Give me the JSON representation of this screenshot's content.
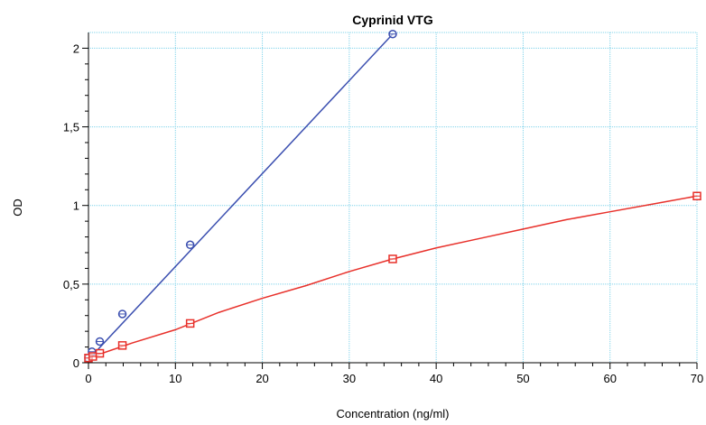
{
  "chart_data": {
    "type": "line",
    "title": "Cyprinid VTG",
    "xlabel": "Concentration (ng/ml)",
    "ylabel": "OD",
    "xlim": [
      0,
      70
    ],
    "ylim": [
      0,
      2.1
    ],
    "x_ticks": [
      0,
      10,
      20,
      30,
      40,
      50,
      60,
      70
    ],
    "x_tick_labels": [
      "0",
      "10",
      "20",
      "30",
      "40",
      "50",
      "60",
      "70"
    ],
    "y_ticks": [
      0,
      0.5,
      1,
      1.5,
      2
    ],
    "y_tick_labels": [
      "0",
      "0,5",
      "1",
      "1,5",
      "2"
    ],
    "grid": true,
    "series": [
      {
        "color": "#3b4fb0",
        "marker": "circle",
        "x": [
          0,
          0.4,
          1.3,
          3.9,
          11.7,
          35
        ],
        "y": [
          0.03,
          0.07,
          0.135,
          0.31,
          0.75,
          2.09
        ],
        "fit": {
          "x": [
            0,
            35
          ],
          "y": [
            0.02,
            2.09
          ]
        }
      },
      {
        "color": "#e8302a",
        "marker": "square",
        "x": [
          0,
          0.5,
          1.3,
          3.9,
          11.7,
          35,
          70
        ],
        "y": [
          0.03,
          0.04,
          0.06,
          0.11,
          0.25,
          0.66,
          1.06
        ],
        "fit": {
          "x": [
            0,
            5,
            10,
            15,
            20,
            25,
            30,
            35,
            40,
            45,
            50,
            55,
            60,
            65,
            70
          ],
          "y": [
            0.03,
            0.125,
            0.21,
            0.32,
            0.41,
            0.49,
            0.58,
            0.66,
            0.73,
            0.79,
            0.85,
            0.91,
            0.96,
            1.01,
            1.06
          ]
        }
      }
    ]
  }
}
